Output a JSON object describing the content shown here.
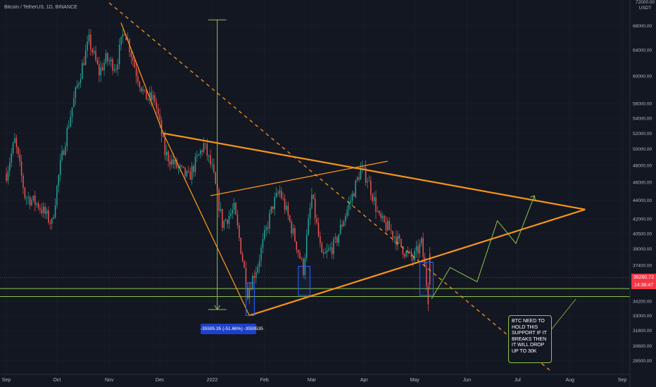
{
  "symbol": "Bitcoin / TetherUS, 1D, BINANCE",
  "currency_top": "72000.00",
  "currency_unit": "USDT",
  "current_price": "36260.72",
  "countdown": "14:38:47",
  "measure_label": "-35595.35 (-51.66%) -3559535",
  "note_text": "BTC NEED TO HOLD THIS SUPPORT IF IT BREAKS THEN IT WILL DROP UP TO 30K",
  "colors": {
    "background": "#131722",
    "up": "#26a69a",
    "down": "#ef5350",
    "orange": "#f7931a",
    "green": "#8bc34a",
    "blue": "#2962ff"
  },
  "chart_data": {
    "type": "candlestick",
    "y_scale": "log",
    "ylim": [
      28800,
      72000
    ],
    "xlabels": [
      "Sep",
      "Oct",
      "Nov",
      "Dec",
      "2022",
      "Feb",
      "Mar",
      "Apr",
      "May",
      "Jun",
      "Jul",
      "Aug",
      "Sep"
    ],
    "ylabels": [
      68000,
      64000,
      60000,
      56000,
      54000,
      52000,
      50000,
      48000,
      46000,
      44000,
      42000,
      40500,
      39000,
      37400,
      34200,
      33000,
      31800,
      30600,
      29500
    ],
    "support_levels": [
      34600,
      35300
    ],
    "price_path": [
      [
        "2021-09-01",
        47000
      ],
      [
        "2021-09-06",
        51000
      ],
      [
        "2021-09-12",
        44500
      ],
      [
        "2021-09-20",
        43500
      ],
      [
        "2021-09-28",
        41500
      ],
      [
        "2021-10-03",
        48000
      ],
      [
        "2021-10-10",
        55500
      ],
      [
        "2021-10-16",
        61500
      ],
      [
        "2021-10-20",
        65500
      ],
      [
        "2021-10-26",
        60500
      ],
      [
        "2021-10-30",
        62500
      ],
      [
        "2021-11-05",
        61500
      ],
      [
        "2021-11-10",
        67500
      ],
      [
        "2021-11-17",
        60500
      ],
      [
        "2021-11-22",
        57000
      ],
      [
        "2021-11-28",
        56500
      ],
      [
        "2021-12-04",
        49500
      ],
      [
        "2021-12-10",
        48000
      ],
      [
        "2021-12-18",
        46500
      ],
      [
        "2021-12-27",
        50500
      ],
      [
        "2022-01-01",
        47500
      ],
      [
        "2022-01-07",
        41500
      ],
      [
        "2022-01-14",
        43000
      ],
      [
        "2022-01-22",
        35000
      ],
      [
        "2022-01-28",
        37500
      ],
      [
        "2022-02-06",
        43500
      ],
      [
        "2022-02-10",
        45000
      ],
      [
        "2022-02-18",
        40500
      ],
      [
        "2022-02-24",
        37000
      ],
      [
        "2022-03-01",
        44500
      ],
      [
        "2022-03-07",
        38000
      ],
      [
        "2022-03-15",
        39500
      ],
      [
        "2022-03-25",
        44500
      ],
      [
        "2022-03-30",
        47500
      ],
      [
        "2022-04-03",
        46500
      ],
      [
        "2022-04-10",
        42000
      ],
      [
        "2022-04-18",
        40500
      ],
      [
        "2022-04-26",
        38500
      ],
      [
        "2022-04-30",
        38000
      ],
      [
        "2022-05-05",
        39500
      ],
      [
        "2022-05-09",
        34500
      ],
      [
        "2022-05-10",
        36260
      ]
    ],
    "annotations": {
      "descending_dashed_line": [
        [
          "2021-11-01",
          72000
        ],
        [
          "2022-07-20",
          28800
        ]
      ],
      "triangle_upper": [
        [
          "2021-12-03",
          52000
        ],
        [
          "2022-08-10",
          43000
        ]
      ],
      "triangle_lower": [
        [
          "2022-01-23",
          33000
        ],
        [
          "2022-08-10",
          43000
        ]
      ],
      "steep_line": [
        [
          "2021-11-08",
          68500
        ],
        [
          "2021-12-03",
          52000
        ],
        [
          "2022-01-23",
          33000
        ]
      ],
      "rising_line": [
        [
          "2021-12-31",
          44500
        ],
        [
          "2022-04-15",
          48500
        ]
      ],
      "projection_arrow": [
        [
          "2022-05-11",
          34400
        ],
        [
          "2022-05-22",
          37200
        ],
        [
          "2022-06-07",
          35900
        ],
        [
          "2022-06-19",
          41800
        ],
        [
          "2022-06-30",
          39500
        ],
        [
          "2022-07-11",
          44500
        ]
      ],
      "measure_range": [
        [
          "2022-01-04",
          69000
        ],
        [
          "2022-01-04",
          33500
        ]
      ]
    }
  }
}
